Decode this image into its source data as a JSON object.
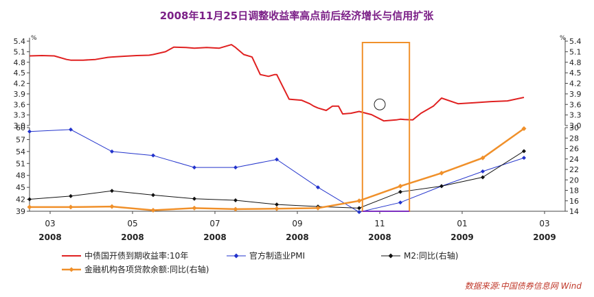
{
  "colors": {
    "title": "#7b1f87",
    "yield": "#e02020",
    "pmi": "#2233cc",
    "m2": "#111111",
    "loans": "#f0902a",
    "highlight_box": "#f0902a",
    "highlight_box_bottom": "#7b2fbf",
    "source": "#c0392b"
  },
  "chart_data": {
    "type": "line",
    "title": "2008年11月25日调整收益率高点前后经济增长与信用扩张",
    "source": "数据来源:中国债券信息网 Wind",
    "top_panel": {
      "unit_left": "%",
      "unit_right": "%",
      "ylim": [
        3.0,
        5.4
      ],
      "yticks": [
        "5.4",
        "5.1",
        "4.8",
        "4.5",
        "4.2",
        "3.9",
        "3.6",
        "3.3",
        "3.0"
      ],
      "series": [
        {
          "name": "中债国开债到期收益率:10年",
          "x": [
            0,
            0.3,
            0.6,
            0.9,
            1.0,
            1.3,
            1.6,
            1.9,
            2.0,
            2.3,
            2.6,
            2.9,
            3.0,
            3.3,
            3.5,
            3.8,
            4.0,
            4.3,
            4.6,
            4.9,
            5.0,
            5.2,
            5.4,
            5.6,
            5.8,
            5.95,
            6.0,
            6.3,
            6.6,
            6.8,
            6.9,
            7.0,
            7.2,
            7.35,
            7.5,
            7.6,
            7.8,
            8.0,
            8.3,
            8.6,
            8.9,
            9.0,
            9.1,
            9.3,
            9.5,
            9.8,
            10.0,
            10.4,
            10.8,
            11.2,
            11.6,
            12.0
          ],
          "values": [
            4.98,
            4.99,
            4.98,
            4.88,
            4.86,
            4.86,
            4.88,
            4.94,
            4.95,
            4.97,
            4.99,
            5.0,
            5.02,
            5.1,
            5.23,
            5.22,
            5.2,
            5.22,
            5.2,
            5.3,
            5.22,
            5.02,
            4.95,
            4.45,
            4.4,
            4.45,
            4.45,
            3.75,
            3.72,
            3.62,
            3.55,
            3.5,
            3.43,
            3.55,
            3.55,
            3.33,
            3.35,
            3.4,
            3.31,
            3.13,
            3.16,
            3.18,
            3.17,
            3.16,
            3.35,
            3.55,
            3.78,
            3.62,
            3.65,
            3.68,
            3.7,
            3.8
          ]
        }
      ]
    },
    "bottom_panel": {
      "ylim_left": [
        39,
        60
      ],
      "yticks_left": [
        "60",
        "57",
        "54",
        "51",
        "48",
        "45",
        "42",
        "39"
      ],
      "ylim_right": [
        14,
        30
      ],
      "yticks_right": [
        "30",
        "28",
        "26",
        "24",
        "22",
        "20",
        "18",
        "16",
        "14"
      ],
      "series": [
        {
          "name": "官方制造业PMI",
          "axis": "left",
          "x": [
            0,
            1,
            2,
            3,
            4,
            5,
            6,
            7,
            8,
            9,
            10,
            11,
            12
          ],
          "values": [
            59.0,
            59.5,
            54.0,
            53.0,
            50.0,
            50.0,
            52.0,
            45.0,
            38.8,
            41.2,
            45.3,
            49.0,
            52.4
          ]
        },
        {
          "name": "M2:同比(右轴)",
          "axis": "right",
          "x": [
            0,
            1,
            2,
            3,
            4,
            5,
            6,
            7,
            8,
            9,
            10,
            11,
            12
          ],
          "values": [
            16.3,
            16.9,
            17.9,
            17.1,
            16.4,
            16.1,
            15.3,
            14.9,
            14.6,
            17.7,
            18.8,
            20.5,
            25.5
          ]
        },
        {
          "name": "金融机构各项贷款余额:同比(右轴)",
          "axis": "right",
          "x": [
            0,
            1,
            2,
            3,
            4,
            5,
            6,
            7,
            8,
            9,
            10,
            11,
            12
          ],
          "values": [
            14.8,
            14.8,
            14.9,
            14.2,
            14.6,
            14.4,
            14.5,
            14.6,
            16.0,
            18.8,
            21.3,
            24.2,
            29.8
          ]
        }
      ]
    },
    "x_labels": [
      {
        "x": 0.5,
        "month": "03",
        "year": "2008"
      },
      {
        "x": 2.5,
        "month": "05",
        "year": "2008"
      },
      {
        "x": 4.5,
        "month": "07",
        "year": "2008"
      },
      {
        "x": 6.5,
        "month": "09",
        "year": "2008"
      },
      {
        "x": 8.5,
        "month": "11",
        "year": "2008"
      },
      {
        "x": 10.5,
        "month": "01",
        "year": "2009"
      },
      {
        "x": 12.5,
        "month": "03",
        "year": "2009"
      }
    ],
    "highlight": {
      "x_start": 8.08,
      "x_end": 9.22
    },
    "annotation_circle_x": 8.5,
    "annotation_circle_value": 3.6,
    "legend": {
      "placement": "bottom",
      "items": [
        {
          "name": "中债国开债到期收益率:10年",
          "marker": "line"
        },
        {
          "name": "官方制造业PMI",
          "marker": "diamond"
        },
        {
          "name": "M2:同比(右轴)",
          "marker": "diamond"
        },
        {
          "name": "金融机构各项贷款余额:同比(右轴)",
          "marker": "diamond"
        }
      ]
    }
  }
}
